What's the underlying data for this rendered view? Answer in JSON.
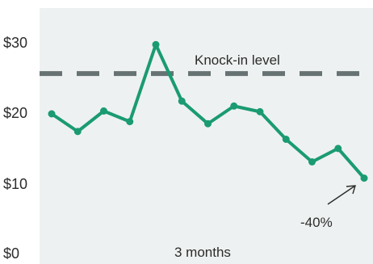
{
  "chart_data": {
    "type": "line",
    "title": "",
    "xlabel": "3 months",
    "ylabel": "",
    "ylim": [
      0,
      35
    ],
    "y_ticks": [
      {
        "value": 0,
        "label": "$0"
      },
      {
        "value": 10,
        "label": "$10"
      },
      {
        "value": 20,
        "label": "$20"
      },
      {
        "value": 30,
        "label": "$30"
      }
    ],
    "series": [
      {
        "color": "#1a9b71",
        "values": [
          20,
          17.5,
          20.4,
          18.9,
          29.8,
          21.8,
          18.6,
          21.1,
          20.3,
          16.4,
          13.2,
          15.1,
          10.9
        ]
      }
    ],
    "reference_line": {
      "value": 25.7,
      "label": "Knock-in level",
      "color": "#677273",
      "style": "dashed"
    },
    "annotation": {
      "text": "-40%",
      "points_to_index": 12
    },
    "background": "#eef1f1",
    "grid": false
  }
}
